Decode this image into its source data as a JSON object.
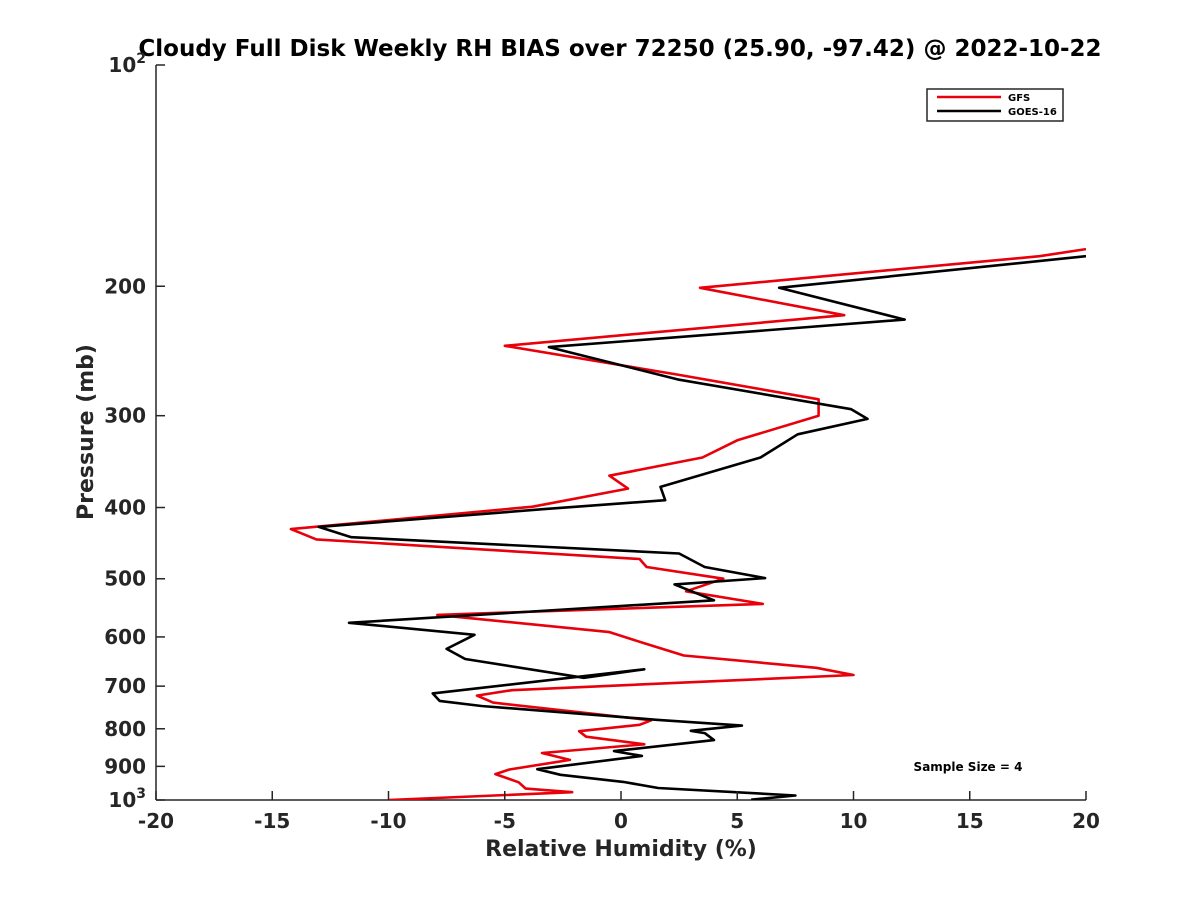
{
  "chart_data": {
    "type": "line",
    "title": "Cloudy Full Disk Weekly RH BIAS over 72250 (25.90, -97.42) @ 2022-10-22",
    "xlabel": "Relative Humidity (%)",
    "ylabel": "Pressure (mb)",
    "xlim": [
      -20,
      20
    ],
    "ylim": [
      100,
      1000
    ],
    "y_scale": "log",
    "y_reversed": true,
    "x_ticks": [
      -20,
      -15,
      -10,
      -5,
      0,
      5,
      10,
      15,
      20
    ],
    "y_ticks": [
      {
        "value": 100,
        "label": "10",
        "sup": "2"
      },
      {
        "value": 200,
        "label": "200",
        "sup": ""
      },
      {
        "value": 300,
        "label": "300",
        "sup": ""
      },
      {
        "value": 400,
        "label": "400",
        "sup": ""
      },
      {
        "value": 500,
        "label": "500",
        "sup": ""
      },
      {
        "value": 600,
        "label": "600",
        "sup": ""
      },
      {
        "value": 700,
        "label": "700",
        "sup": ""
      },
      {
        "value": 800,
        "label": "800",
        "sup": ""
      },
      {
        "value": 900,
        "label": "900",
        "sup": ""
      },
      {
        "value": 1000,
        "label": "10",
        "sup": "3"
      }
    ],
    "grid": false,
    "legend_position": "top-right",
    "annotation": "Sample Size = 4",
    "series": [
      {
        "name": "GFS",
        "color": "#e8000b",
        "points": [
          [
            20.0,
            178
          ],
          [
            18.0,
            182
          ],
          [
            3.4,
            201
          ],
          [
            9.6,
            219
          ],
          [
            -5.0,
            241
          ],
          [
            2.5,
            264
          ],
          [
            8.5,
            285
          ],
          [
            8.5,
            300
          ],
          [
            5.0,
            324
          ],
          [
            3.5,
            342
          ],
          [
            -0.5,
            362
          ],
          [
            0.3,
            377
          ],
          [
            -3.8,
            399
          ],
          [
            -14.2,
            428
          ],
          [
            -13.1,
            442
          ],
          [
            0.8,
            470
          ],
          [
            1.1,
            482
          ],
          [
            4.4,
            500
          ],
          [
            2.8,
            520
          ],
          [
            6.1,
            541
          ],
          [
            -7.9,
            560
          ],
          [
            -0.5,
            591
          ],
          [
            1.0,
            612
          ],
          [
            2.7,
            636
          ],
          [
            8.4,
            661
          ],
          [
            10.0,
            676
          ],
          [
            -4.7,
            709
          ],
          [
            -6.2,
            721
          ],
          [
            -5.5,
            737
          ],
          [
            1.3,
            779
          ],
          [
            0.8,
            790
          ],
          [
            -1.8,
            806
          ],
          [
            -1.5,
            820
          ],
          [
            1.0,
            840
          ],
          [
            -3.4,
            863
          ],
          [
            -2.2,
            882
          ],
          [
            -4.8,
            909
          ],
          [
            -5.4,
            922
          ],
          [
            -4.4,
            946
          ],
          [
            -4.1,
            965
          ],
          [
            -2.1,
            976
          ],
          [
            -10.0,
            1000
          ]
        ]
      },
      {
        "name": "GOES-16",
        "color": "#000000",
        "points": [
          [
            20.0,
            182
          ],
          [
            6.8,
            201
          ],
          [
            12.2,
            222
          ],
          [
            -3.1,
            242
          ],
          [
            2.5,
            268
          ],
          [
            9.9,
            294
          ],
          [
            10.6,
            303
          ],
          [
            7.6,
            318
          ],
          [
            6.0,
            342
          ],
          [
            1.7,
            375
          ],
          [
            1.9,
            391
          ],
          [
            -3.3,
            402
          ],
          [
            -13.0,
            425
          ],
          [
            -11.6,
            439
          ],
          [
            2.5,
            462
          ],
          [
            3.6,
            482
          ],
          [
            6.2,
            499
          ],
          [
            2.3,
            509
          ],
          [
            4.0,
            535
          ],
          [
            -11.7,
            574
          ],
          [
            -6.3,
            596
          ],
          [
            -7.5,
            623
          ],
          [
            -6.7,
            643
          ],
          [
            -1.6,
            682
          ],
          [
            1.0,
            664
          ],
          [
            -8.1,
            716
          ],
          [
            -7.8,
            733
          ],
          [
            -6.0,
            745
          ],
          [
            1.6,
            778
          ],
          [
            5.2,
            792
          ],
          [
            3.0,
            805
          ],
          [
            3.6,
            811
          ],
          [
            4.0,
            829
          ],
          [
            -0.3,
            858
          ],
          [
            0.9,
            871
          ],
          [
            -3.6,
            908
          ],
          [
            -2.6,
            924
          ],
          [
            0.1,
            945
          ],
          [
            1.6,
            963
          ],
          [
            7.5,
            986
          ],
          [
            5.6,
            999
          ]
        ]
      }
    ]
  }
}
